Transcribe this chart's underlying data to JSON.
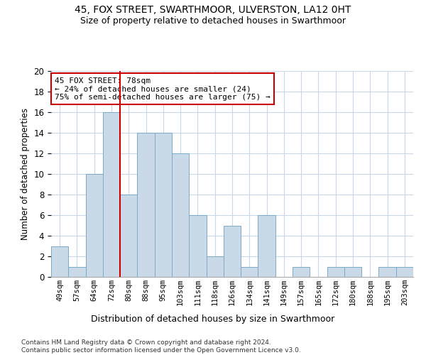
{
  "title": "45, FOX STREET, SWARTHMOOR, ULVERSTON, LA12 0HT",
  "subtitle": "Size of property relative to detached houses in Swarthmoor",
  "xlabel": "Distribution of detached houses by size in Swarthmoor",
  "ylabel": "Number of detached properties",
  "categories": [
    "49sqm",
    "57sqm",
    "64sqm",
    "72sqm",
    "80sqm",
    "88sqm",
    "95sqm",
    "103sqm",
    "111sqm",
    "118sqm",
    "126sqm",
    "134sqm",
    "141sqm",
    "149sqm",
    "157sqm",
    "165sqm",
    "172sqm",
    "180sqm",
    "188sqm",
    "195sqm",
    "203sqm"
  ],
  "values": [
    3,
    1,
    10,
    16,
    8,
    14,
    14,
    12,
    6,
    2,
    5,
    1,
    6,
    0,
    1,
    0,
    1,
    1,
    0,
    1,
    1
  ],
  "bar_color": "#c9d9e8",
  "bar_edgecolor": "#7aaac8",
  "vline_x": 3.5,
  "vline_color": "#cc0000",
  "annotation_text": "45 FOX STREET: 78sqm\n← 24% of detached houses are smaller (24)\n75% of semi-detached houses are larger (75) →",
  "annotation_box_edgecolor": "#cc0000",
  "ylim": [
    0,
    20
  ],
  "yticks": [
    0,
    2,
    4,
    6,
    8,
    10,
    12,
    14,
    16,
    18,
    20
  ],
  "footer": "Contains HM Land Registry data © Crown copyright and database right 2024.\nContains public sector information licensed under the Open Government Licence v3.0.",
  "bg_color": "#ffffff",
  "grid_color": "#c8d8e8"
}
